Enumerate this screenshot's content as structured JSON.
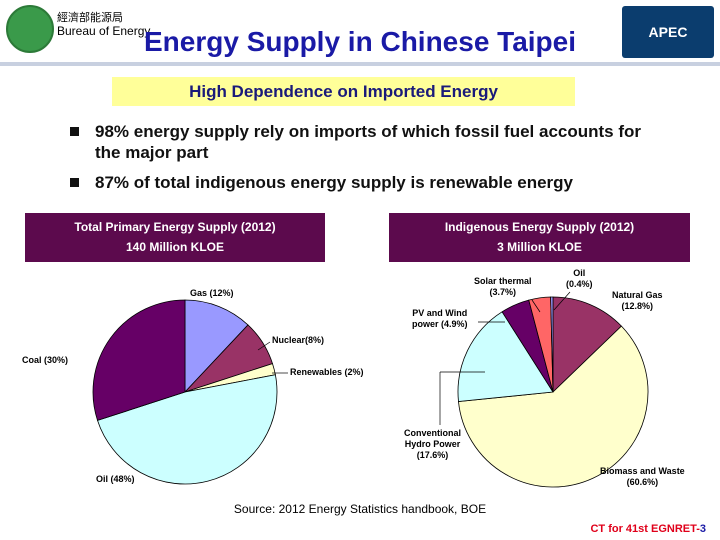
{
  "header": {
    "agency_cn": "經濟部能源局",
    "agency_en": "Bureau of Energy",
    "logo_text": "APEC",
    "title": "Energy Supply in Chinese Taipei"
  },
  "subtitle": "High Dependence on Imported Energy",
  "bullets": [
    "98% energy supply rely on imports of which fossil fuel accounts for the major part",
    "87% of total indigenous energy supply is renewable energy"
  ],
  "chart_data": [
    {
      "type": "pie",
      "title": "Total Primary Energy Supply (2012)",
      "subtitle": "140 Million KLOE",
      "categories": [
        "Gas (12%)",
        "Nuclear(8%)",
        "Renewables (2%)",
        "Oil (48%)",
        "Coal (30%)"
      ],
      "values": [
        12,
        8,
        2,
        48,
        30
      ],
      "colors": [
        "#9999ff",
        "#993366",
        "#ffffcc",
        "#ccffff",
        "#660066"
      ]
    },
    {
      "type": "pie",
      "title": "Indigenous Energy Supply (2012)",
      "subtitle": "3 Million KLOE",
      "categories": [
        "Natural Gas\n(12.8%)",
        "Biomass and Waste\n(60.6%)",
        "Conventional\nHydro Power\n(17.6%)",
        "PV and Wind\npower (4.9%)",
        "Solar thermal\n(3.7%)",
        "Oil\n(0.4%)"
      ],
      "values": [
        12.8,
        60.6,
        17.6,
        4.9,
        3.7,
        0.4
      ],
      "colors": [
        "#993366",
        "#ffffcc",
        "#ccffff",
        "#660066",
        "#ff6666",
        "#9999ff"
      ]
    }
  ],
  "source": "Source: 2012 Energy Statistics handbook, BOE",
  "footer": {
    "text": "CT for 41st EGNRET-",
    "page": "3"
  }
}
